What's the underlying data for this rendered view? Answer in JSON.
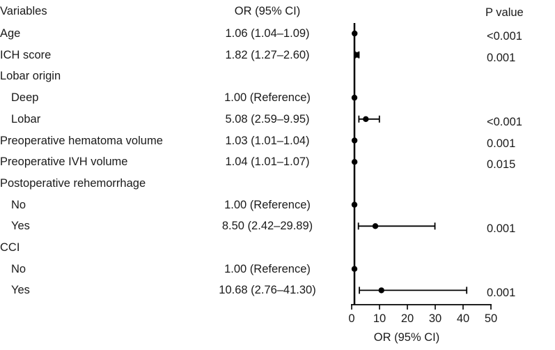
{
  "chart_data": {
    "type": "forest",
    "columns": {
      "variable": "Variables",
      "or_ci": "OR (95% CI)",
      "p_value": "P value"
    },
    "xlabel": "OR (95% CI)",
    "xlim": [
      0,
      50
    ],
    "xticks": [
      0,
      10,
      20,
      30,
      40,
      50
    ],
    "reference_line": 1,
    "rows": [
      {
        "label": "Age",
        "indent": false,
        "or_ci": "1.06 (1.04–1.09)",
        "p": "<0.001",
        "or": 1.06,
        "lower": 1.04,
        "upper": 1.09,
        "marker": "circle"
      },
      {
        "label": "ICH score",
        "indent": false,
        "or_ci": "1.82 (1.27–2.60)",
        "p": "0.001",
        "or": 1.82,
        "lower": 1.27,
        "upper": 2.6,
        "marker": "square"
      },
      {
        "label": "Lobar origin",
        "indent": false,
        "or_ci": "",
        "p": "",
        "or": null,
        "lower": null,
        "upper": null,
        "marker": ""
      },
      {
        "label": "Deep",
        "indent": true,
        "or_ci": "1.00 (Reference)",
        "p": "",
        "or": 1.0,
        "lower": 1.0,
        "upper": 1.0,
        "marker": "circle"
      },
      {
        "label": "Lobar",
        "indent": true,
        "or_ci": "5.08 (2.59–9.95)",
        "p": "<0.001",
        "or": 5.08,
        "lower": 2.59,
        "upper": 9.95,
        "marker": "circle"
      },
      {
        "label": "Preoperative hematoma volume",
        "indent": false,
        "or_ci": "1.03 (1.01–1.04)",
        "p": "0.001",
        "or": 1.03,
        "lower": 1.01,
        "upper": 1.04,
        "marker": "circle"
      },
      {
        "label": "Preoperative IVH volume",
        "indent": false,
        "or_ci": "1.04 (1.01–1.07)",
        "p": "0.015",
        "or": 1.04,
        "lower": 1.01,
        "upper": 1.07,
        "marker": "circle"
      },
      {
        "label": "Postoperative rehemorrhage",
        "indent": false,
        "or_ci": "",
        "p": "",
        "or": null,
        "lower": null,
        "upper": null,
        "marker": ""
      },
      {
        "label": "No",
        "indent": true,
        "or_ci": "1.00 (Reference)",
        "p": "",
        "or": 1.0,
        "lower": 1.0,
        "upper": 1.0,
        "marker": "circle"
      },
      {
        "label": "Yes",
        "indent": true,
        "or_ci": "8.50 (2.42–29.89)",
        "p": "0.001",
        "or": 8.5,
        "lower": 2.42,
        "upper": 29.89,
        "marker": "circle"
      },
      {
        "label": "CCI",
        "indent": false,
        "or_ci": "",
        "p": "",
        "or": null,
        "lower": null,
        "upper": null,
        "marker": ""
      },
      {
        "label": "No",
        "indent": true,
        "or_ci": "1.00 (Reference)",
        "p": "",
        "or": 1.0,
        "lower": 1.0,
        "upper": 1.0,
        "marker": "circle"
      },
      {
        "label": "Yes",
        "indent": true,
        "or_ci": "10.68 (2.76–41.30)",
        "p": "0.001",
        "or": 10.68,
        "lower": 2.76,
        "upper": 41.3,
        "marker": "circle"
      }
    ]
  }
}
